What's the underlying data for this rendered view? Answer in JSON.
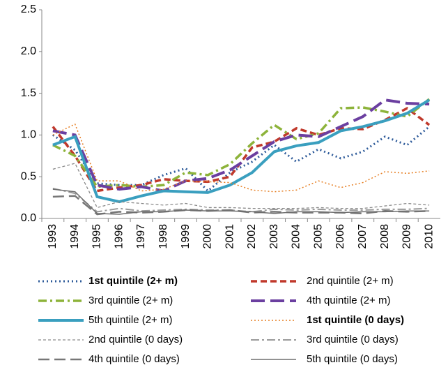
{
  "chart_data": {
    "type": "line",
    "categories": [
      "1993",
      "1994",
      "1995",
      "1996",
      "1997",
      "1998",
      "1999",
      "2000",
      "2001",
      "2002",
      "2003",
      "2004",
      "2005",
      "2006",
      "2007",
      "2008",
      "2009",
      "2010"
    ],
    "ylim": [
      0,
      2.5
    ],
    "yticks": [
      {
        "value": 0,
        "label": "0.0"
      },
      0.5,
      {
        "value": 1,
        "label": "1.0"
      },
      1.5,
      {
        "value": 2,
        "label": "2.0"
      },
      2.5
    ],
    "series": [
      {
        "name": "1st quintile (2+ m)",
        "color": "#2e5b9a",
        "values": [
          1.0,
          0.82,
          0.42,
          0.4,
          0.4,
          0.52,
          0.6,
          0.33,
          0.55,
          0.68,
          0.88,
          0.68,
          0.83,
          0.72,
          0.8,
          0.98,
          0.88,
          1.1
        ]
      },
      {
        "name": "2nd quintile (2+ m)",
        "color": "#c0392b",
        "values": [
          1.1,
          0.75,
          0.33,
          0.37,
          0.4,
          0.47,
          0.45,
          0.44,
          0.5,
          0.85,
          0.92,
          1.08,
          1.0,
          1.08,
          1.07,
          1.18,
          1.32,
          1.12
        ]
      },
      {
        "name": "3rd quintile (2+ m)",
        "color": "#8db33a",
        "values": [
          0.88,
          0.75,
          0.38,
          0.4,
          0.38,
          0.4,
          0.55,
          0.52,
          0.65,
          0.9,
          1.12,
          0.95,
          1.02,
          1.32,
          1.33,
          1.28,
          1.22,
          1.43
        ]
      },
      {
        "name": "4th quintile (2+ m)",
        "color": "#6b3fa0",
        "values": [
          1.05,
          1.0,
          0.4,
          0.35,
          0.38,
          0.33,
          0.45,
          0.48,
          0.58,
          0.75,
          0.92,
          1.0,
          0.98,
          1.1,
          1.22,
          1.42,
          1.38,
          1.37
        ]
      },
      {
        "name": "5th quintile (2+ m)",
        "color": "#3a9fbf",
        "values": [
          0.88,
          0.98,
          0.26,
          0.2,
          0.27,
          0.33,
          0.32,
          0.31,
          0.4,
          0.55,
          0.8,
          0.87,
          0.91,
          1.05,
          1.1,
          1.17,
          1.26,
          1.42
        ]
      },
      {
        "name": "1st quintile (0 days)",
        "color": "#e67e22",
        "values": [
          1.0,
          1.13,
          0.45,
          0.45,
          0.33,
          0.35,
          0.45,
          0.44,
          0.43,
          0.34,
          0.32,
          0.34,
          0.45,
          0.37,
          0.43,
          0.56,
          0.54,
          0.57
        ]
      },
      {
        "name": "2nd quintile (0 days)",
        "color": "#8a8a8a",
        "values": [
          0.59,
          0.66,
          0.13,
          0.2,
          0.18,
          0.16,
          0.18,
          0.13,
          0.13,
          0.12,
          0.12,
          0.12,
          0.13,
          0.12,
          0.12,
          0.15,
          0.18,
          0.16
        ]
      },
      {
        "name": "3rd quintile (0 days)",
        "color": "#9a9a9a",
        "values": [
          0.36,
          0.3,
          0.08,
          0.12,
          0.09,
          0.1,
          0.11,
          0.1,
          0.1,
          0.08,
          0.11,
          0.1,
          0.11,
          0.1,
          0.1,
          0.11,
          0.11,
          0.12
        ]
      },
      {
        "name": "4th quintile (0 days)",
        "color": "#777777",
        "values": [
          0.26,
          0.27,
          0.05,
          0.08,
          0.07,
          0.08,
          0.1,
          0.09,
          0.1,
          0.07,
          0.08,
          0.07,
          0.07,
          0.07,
          0.06,
          0.09,
          0.08,
          0.09
        ]
      },
      {
        "name": "5th quintile (0 days)",
        "color": "#6e6e6e",
        "values": [
          0.35,
          0.32,
          0.06,
          0.05,
          0.08,
          0.08,
          0.1,
          0.09,
          0.09,
          0.08,
          0.06,
          0.08,
          0.08,
          0.07,
          0.08,
          0.08,
          0.09,
          0.09
        ]
      }
    ]
  }
}
